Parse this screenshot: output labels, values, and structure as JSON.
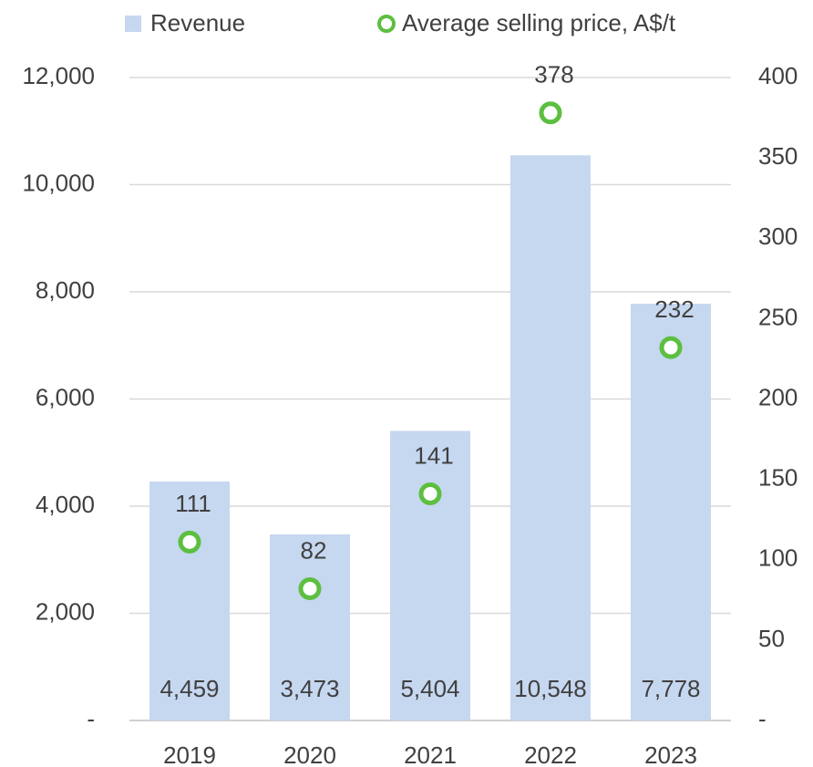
{
  "chart_data": {
    "type": "bar",
    "categories": [
      "2019",
      "2020",
      "2021",
      "2022",
      "2023"
    ],
    "series": [
      {
        "name": "Revenue",
        "color": "#c6d7f0",
        "values": [
          4459,
          3473,
          5404,
          10548,
          7778
        ],
        "value_labels": [
          "4,459",
          "3,473",
          "5,404",
          "10,548",
          "7,778"
        ]
      },
      {
        "name": "Average selling price, A$/t",
        "color": "#5cbf3f",
        "axis": "y2",
        "type": "scatter",
        "values": [
          111,
          82,
          141,
          378,
          232
        ]
      }
    ],
    "ylim": [
      0,
      12000
    ],
    "yticks": [
      {
        "value": 0,
        "label": "-"
      },
      {
        "value": 2000,
        "label": "2,000"
      },
      {
        "value": 4000,
        "label": "4,000"
      },
      {
        "value": 6000,
        "label": "6,000"
      },
      {
        "value": 8000,
        "label": "8,000"
      },
      {
        "value": 10000,
        "label": "10,000"
      },
      {
        "value": 12000,
        "label": "12,000"
      }
    ],
    "y2lim": [
      0,
      400
    ],
    "y2ticks": [
      {
        "value": 0,
        "label": "-"
      },
      50,
      100,
      150,
      200,
      250,
      300,
      350,
      400
    ],
    "grid": true,
    "legend": "top"
  }
}
